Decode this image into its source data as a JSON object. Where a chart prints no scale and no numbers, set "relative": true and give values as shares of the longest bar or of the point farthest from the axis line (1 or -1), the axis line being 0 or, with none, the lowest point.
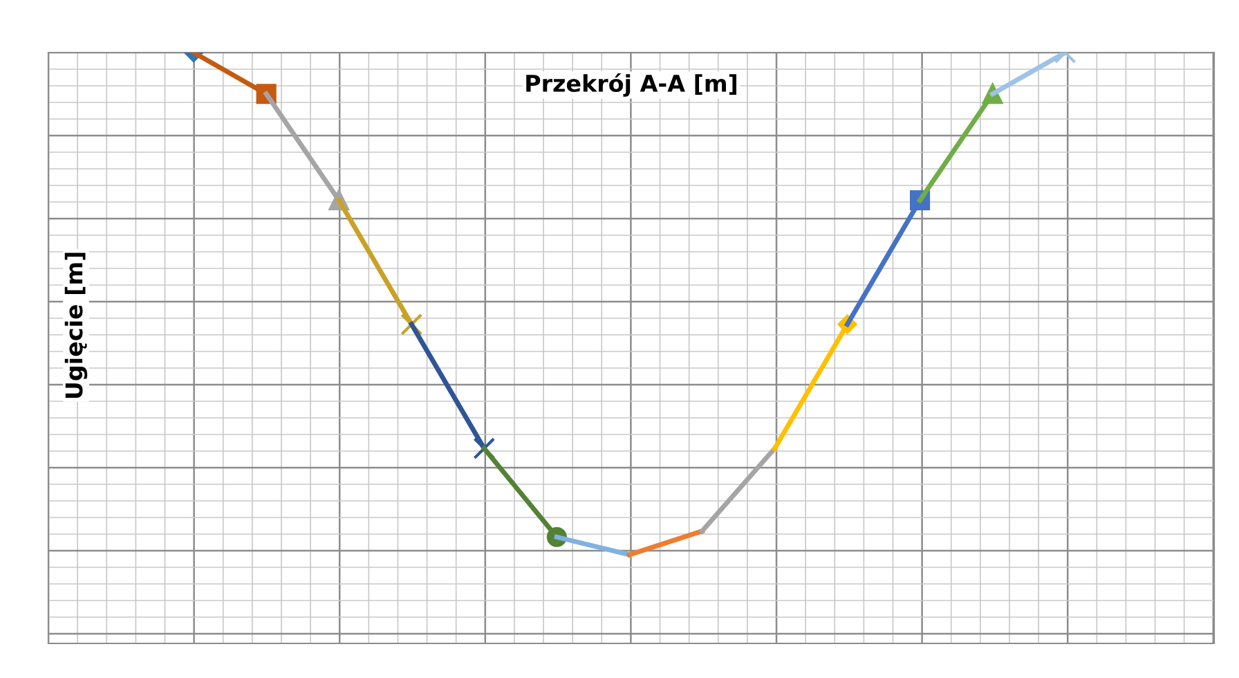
{
  "chart_data": {
    "type": "line",
    "title": "Przekrój A-A [m]",
    "ylabel": "Ugięcie [m]",
    "relative": true,
    "grid": true,
    "categories": [
      null,
      null,
      null,
      null,
      null,
      null,
      null,
      null,
      null,
      null,
      null,
      null,
      null
    ],
    "series": [
      {
        "color": "#2e75b6",
        "marker": "diamond",
        "values": [
          1.0,
          null,
          null,
          null,
          null,
          null,
          null,
          null,
          null,
          null,
          null,
          null,
          null
        ]
      },
      {
        "color": "#c55a11",
        "marker": "square",
        "values": [
          1.0,
          0.93,
          null,
          null,
          null,
          null,
          null,
          null,
          null,
          null,
          null,
          null,
          null
        ]
      },
      {
        "color": "#a5a5a5",
        "marker": "triangle",
        "values": [
          null,
          0.93,
          0.75,
          null,
          null,
          null,
          null,
          null,
          null,
          null,
          null,
          null,
          null
        ]
      },
      {
        "color": "#c9a227",
        "marker": "cross",
        "values": [
          null,
          null,
          0.75,
          0.54,
          null,
          null,
          null,
          null,
          null,
          null,
          null,
          null,
          null
        ]
      },
      {
        "color": "#2f5597",
        "marker": "cross",
        "values": [
          null,
          null,
          null,
          0.54,
          0.33,
          null,
          null,
          null,
          null,
          null,
          null,
          null,
          null
        ]
      },
      {
        "color": "#548235",
        "marker": "circle",
        "values": [
          null,
          null,
          null,
          null,
          0.33,
          0.18,
          null,
          null,
          null,
          null,
          null,
          null,
          null
        ]
      },
      {
        "color": "#7fb2e0",
        "marker": "none",
        "values": [
          null,
          null,
          null,
          null,
          null,
          0.18,
          0.15,
          null,
          null,
          null,
          null,
          null,
          null
        ]
      },
      {
        "color": "#ed7d31",
        "marker": "none",
        "values": [
          null,
          null,
          null,
          null,
          null,
          null,
          0.15,
          0.19,
          null,
          null,
          null,
          null,
          null
        ]
      },
      {
        "color": "#a5a5a5",
        "marker": "none",
        "values": [
          null,
          null,
          null,
          null,
          null,
          null,
          null,
          0.19,
          0.33,
          null,
          null,
          null,
          null
        ]
      },
      {
        "color": "#ffc000",
        "marker": "diamond",
        "values": [
          null,
          null,
          null,
          null,
          null,
          null,
          null,
          null,
          0.33,
          0.54,
          null,
          null,
          null
        ]
      },
      {
        "color": "#4472c4",
        "marker": "square",
        "values": [
          null,
          null,
          null,
          null,
          null,
          null,
          null,
          null,
          null,
          0.54,
          0.75,
          null,
          null
        ]
      },
      {
        "color": "#70ad47",
        "marker": "triangle",
        "values": [
          null,
          null,
          null,
          null,
          null,
          null,
          null,
          null,
          null,
          null,
          0.75,
          0.93,
          null
        ]
      },
      {
        "color": "#9dc3e6",
        "marker": "cross",
        "values": [
          null,
          null,
          null,
          null,
          null,
          null,
          null,
          null,
          null,
          null,
          null,
          0.93,
          1.0
        ]
      }
    ]
  }
}
